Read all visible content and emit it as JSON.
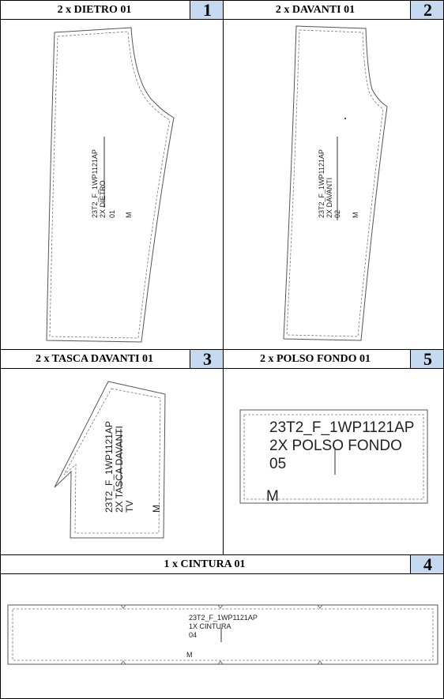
{
  "pieces": {
    "p1": {
      "title": "2 x DIETRO 01",
      "number": "1",
      "label": [
        "23T2_F_1WP1121AP",
        "2X DIETRO",
        "01"
      ],
      "size": "M"
    },
    "p2": {
      "title": "2 x DAVANTI 01",
      "number": "2",
      "label": [
        "23T2_F_1WP1121AP",
        "2X DAVANTI",
        "02"
      ],
      "size": "M"
    },
    "p3": {
      "title": "2 x TASCA DAVANTI 01",
      "number": "3",
      "label": [
        "23T2_F_1WP1121AP",
        "2X TASCA DAVANTI",
        "TV"
      ],
      "size": "M"
    },
    "p5": {
      "title": "2 x POLSO FONDO 01",
      "number": "5",
      "label": [
        "23T2_F_1WP1121AP",
        "2X POLSO FONDO",
        "05"
      ],
      "size": "M"
    },
    "p4": {
      "title": "1 x CINTURA 01",
      "number": "4",
      "label": [
        "23T2_F_1WP1121AP",
        "1X CINTURA",
        "04"
      ],
      "size": "M"
    }
  },
  "colors": {
    "number_bg": "#c5d9f1",
    "border": "#000000",
    "line": "#444444"
  }
}
